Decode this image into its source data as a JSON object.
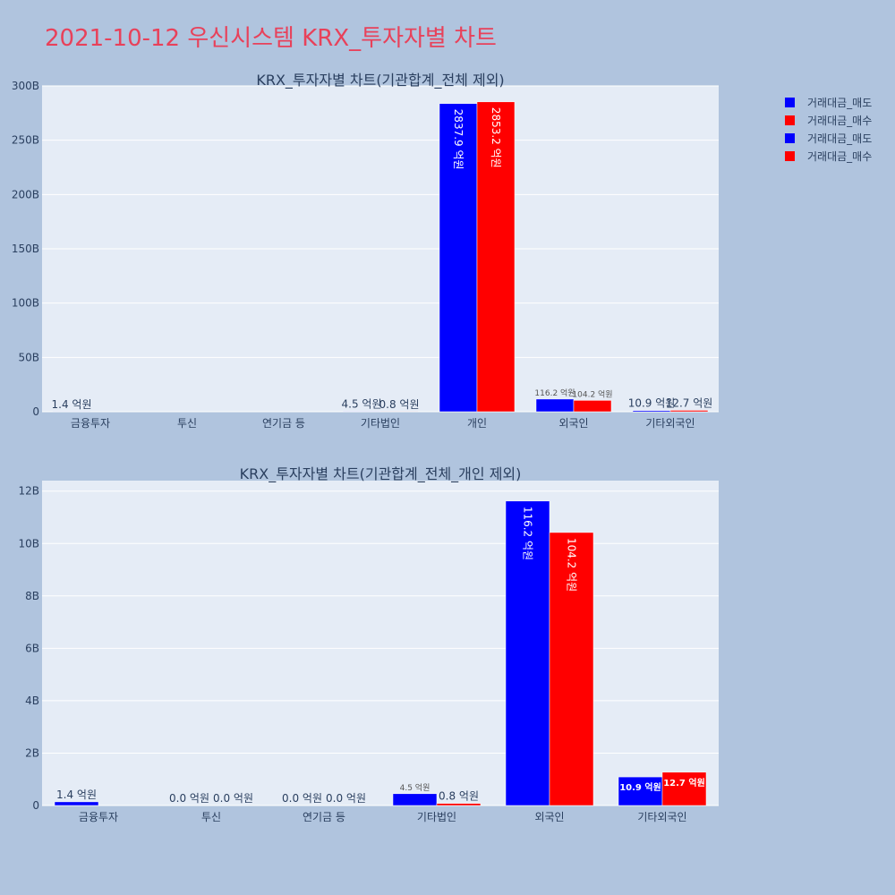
{
  "title": "2021-10-12 우신시스템 KRX_투자자별 차트",
  "colors": {
    "background": "#b0c4de",
    "plot_bg": "#e5ecf6",
    "sell": "#0000ff",
    "buy": "#ff0000",
    "title": "#e8415a",
    "text": "#2a3f5f"
  },
  "legend": {
    "placement": "top-right",
    "items": [
      {
        "label": "거래대금_매도",
        "color": "#0000ff"
      },
      {
        "label": "거래대금_매수",
        "color": "#ff0000"
      },
      {
        "label": "거래대금_매도",
        "color": "#0000ff"
      },
      {
        "label": "거래대금_매수",
        "color": "#ff0000"
      }
    ]
  },
  "chart_data": [
    {
      "type": "bar",
      "title": "KRX_투자자별 차트(기관합계_전체 제외)",
      "categories": [
        "금융투자",
        "투신",
        "연기금 등",
        "기타법인",
        "개인",
        "외국인",
        "기타외국인"
      ],
      "ylim": [
        0,
        300
      ],
      "yticks": [
        "0",
        "50B",
        "100B",
        "150B",
        "200B",
        "250B",
        "300B"
      ],
      "ytick_values": [
        0,
        50,
        100,
        150,
        200,
        250,
        300
      ],
      "series": [
        {
          "name": "거래대금_매도",
          "color": "#0000ff",
          "values": [
            0.14,
            null,
            null,
            0.45,
            283.79,
            11.62,
            1.09
          ],
          "labels": [
            "1.4 억원",
            "",
            "",
            "4.5 억원",
            "2837.9 억원",
            "116.2 억원",
            "10.9 억원"
          ]
        },
        {
          "name": "거래대금_매수",
          "color": "#ff0000",
          "values": [
            null,
            null,
            null,
            0.08,
            285.32,
            10.42,
            1.27
          ],
          "labels": [
            "",
            "",
            "",
            "0.8 억원",
            "2853.2 억원",
            "104.2 억원",
            "12.7 억원"
          ]
        }
      ],
      "grid": true
    },
    {
      "type": "bar",
      "title": "KRX_투자자별 차트(기관합계_전체_개인 제외)",
      "categories": [
        "금융투자",
        "투신",
        "연기금 등",
        "기타법인",
        "외국인",
        "기타외국인"
      ],
      "ylim": [
        0,
        12.4
      ],
      "yticks": [
        "0",
        "2B",
        "4B",
        "6B",
        "8B",
        "10B",
        "12B"
      ],
      "ytick_values": [
        0,
        2,
        4,
        6,
        8,
        10,
        12
      ],
      "series": [
        {
          "name": "거래대금_매도",
          "color": "#0000ff",
          "values": [
            0.14,
            0.0,
            0.0,
            0.45,
            11.62,
            1.09
          ],
          "labels": [
            "1.4 억원",
            "0.0 억원",
            "0.0 억원",
            "4.5 억원",
            "116.2 억원",
            "10.9 억원"
          ]
        },
        {
          "name": "거래대금_매수",
          "color": "#ff0000",
          "values": [
            null,
            0.0,
            0.0,
            0.08,
            10.42,
            1.27
          ],
          "labels": [
            "",
            "0.0 억원",
            "0.0 억원",
            "0.8 억원",
            "104.2 억원",
            "12.7 억원"
          ]
        }
      ],
      "grid": true
    }
  ]
}
